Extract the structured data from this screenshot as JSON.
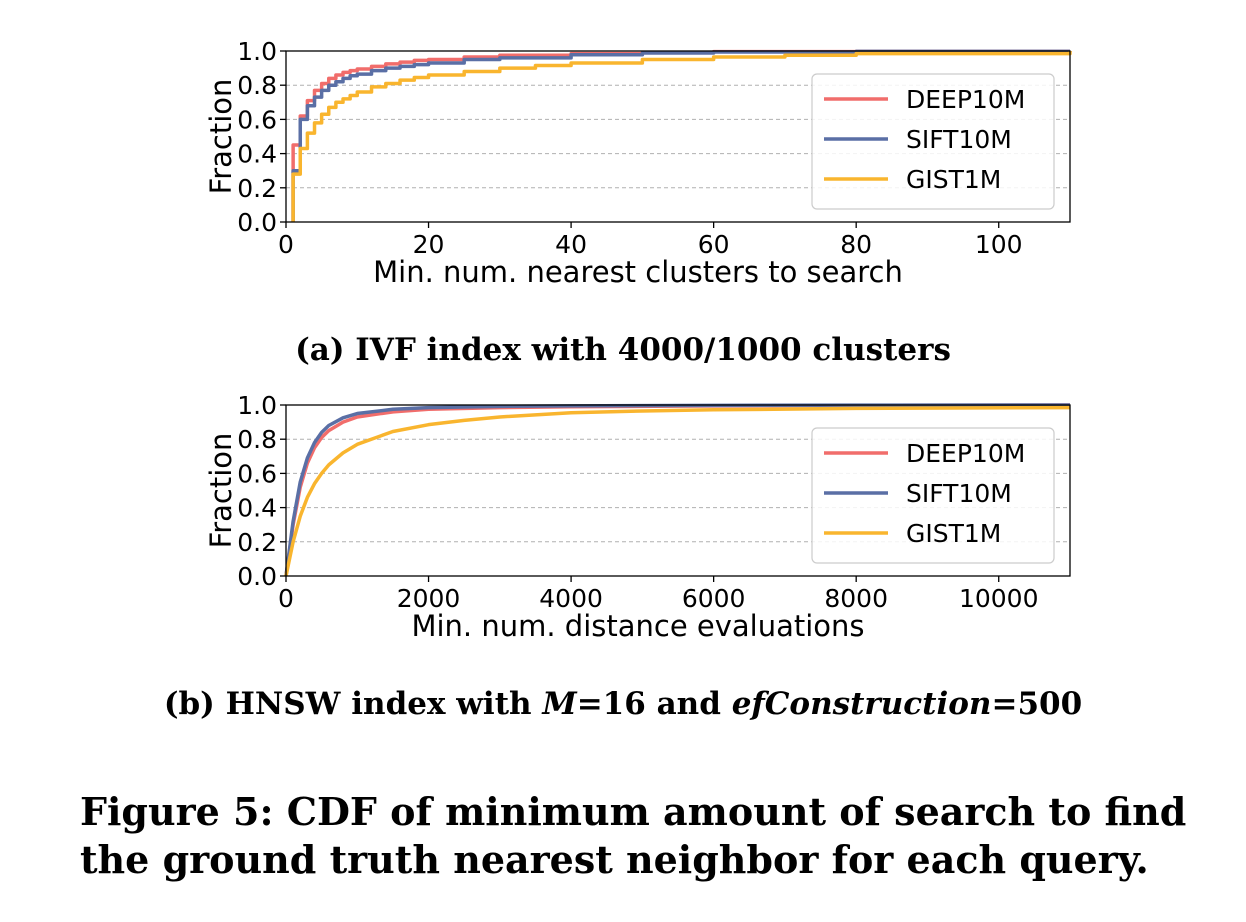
{
  "chart_data": [
    {
      "type": "line",
      "subcaption": "(a) IVF index with 4000/1000 clusters",
      "xlabel": "Min. num. nearest clusters to search",
      "ylabel": "Fraction",
      "xlim": [
        0,
        110
      ],
      "ylim": [
        0,
        1.0
      ],
      "xticks": [
        "0",
        "20",
        "40",
        "60",
        "80",
        "100"
      ],
      "yticks": [
        "0.0",
        "0.2",
        "0.4",
        "0.6",
        "0.8",
        "1.0"
      ],
      "grid": "horizontal dashed",
      "legend_position": "right",
      "step": true,
      "series": [
        {
          "name": "DEEP10M",
          "color": "#f16d6b",
          "x": [
            1,
            2,
            3,
            4,
            5,
            6,
            7,
            8,
            9,
            10,
            12,
            14,
            16,
            18,
            20,
            25,
            30,
            40,
            50,
            60,
            80,
            110
          ],
          "y": [
            0.45,
            0.62,
            0.71,
            0.77,
            0.81,
            0.84,
            0.86,
            0.875,
            0.885,
            0.895,
            0.91,
            0.925,
            0.935,
            0.945,
            0.95,
            0.965,
            0.975,
            0.985,
            0.992,
            0.996,
            0.998,
            1.0
          ]
        },
        {
          "name": "SIFT10M",
          "color": "#5a6fa5",
          "x": [
            1,
            2,
            3,
            4,
            5,
            6,
            7,
            8,
            9,
            10,
            12,
            14,
            16,
            18,
            20,
            25,
            30,
            40,
            50,
            60,
            80,
            110
          ],
          "y": [
            0.3,
            0.6,
            0.68,
            0.73,
            0.77,
            0.8,
            0.82,
            0.84,
            0.855,
            0.865,
            0.885,
            0.9,
            0.91,
            0.92,
            0.93,
            0.95,
            0.96,
            0.978,
            0.988,
            0.994,
            0.998,
            1.0
          ]
        },
        {
          "name": "GIST1M",
          "color": "#f9b52e",
          "x": [
            1,
            2,
            3,
            4,
            5,
            6,
            7,
            8,
            9,
            10,
            12,
            14,
            16,
            18,
            20,
            25,
            30,
            35,
            40,
            50,
            60,
            70,
            80,
            110
          ],
          "y": [
            0.28,
            0.43,
            0.52,
            0.58,
            0.63,
            0.67,
            0.7,
            0.72,
            0.74,
            0.76,
            0.79,
            0.81,
            0.83,
            0.845,
            0.86,
            0.88,
            0.9,
            0.915,
            0.93,
            0.95,
            0.965,
            0.975,
            0.985,
            1.0
          ]
        }
      ]
    },
    {
      "type": "line",
      "subcaption_parts": [
        "(b) HNSW index with ",
        "M",
        "=16 and ",
        "efConstruction",
        "=500"
      ],
      "xlabel": "Min. num. distance evaluations",
      "ylabel": "Fraction",
      "xlim": [
        0,
        11000
      ],
      "ylim": [
        0,
        1.0
      ],
      "xticks": [
        "0",
        "2000",
        "4000",
        "6000",
        "8000",
        "10000"
      ],
      "yticks": [
        "0.0",
        "0.2",
        "0.4",
        "0.6",
        "0.8",
        "1.0"
      ],
      "grid": "horizontal dashed",
      "legend_position": "right",
      "step": false,
      "series": [
        {
          "name": "DEEP10M",
          "color": "#f16d6b",
          "x": [
            0,
            50,
            100,
            200,
            300,
            400,
            500,
            600,
            800,
            1000,
            1500,
            2000,
            3000,
            4000,
            6000,
            8000,
            11000
          ],
          "y": [
            0.0,
            0.15,
            0.3,
            0.52,
            0.66,
            0.75,
            0.81,
            0.85,
            0.9,
            0.93,
            0.96,
            0.975,
            0.985,
            0.99,
            0.995,
            0.998,
            1.0
          ]
        },
        {
          "name": "SIFT10M",
          "color": "#5a6fa5",
          "x": [
            0,
            50,
            100,
            200,
            300,
            400,
            500,
            600,
            800,
            1000,
            1500,
            2000,
            3000,
            4000,
            6000,
            8000,
            11000
          ],
          "y": [
            0.0,
            0.16,
            0.32,
            0.55,
            0.69,
            0.78,
            0.84,
            0.88,
            0.925,
            0.95,
            0.975,
            0.985,
            0.992,
            0.995,
            0.998,
            0.999,
            1.0
          ]
        },
        {
          "name": "GIST1M",
          "color": "#f9b52e",
          "x": [
            0,
            50,
            100,
            200,
            300,
            400,
            500,
            600,
            800,
            1000,
            1500,
            2000,
            2500,
            3000,
            4000,
            5000,
            6000,
            8000,
            11000
          ],
          "y": [
            0.0,
            0.1,
            0.2,
            0.35,
            0.46,
            0.54,
            0.6,
            0.65,
            0.72,
            0.77,
            0.845,
            0.885,
            0.91,
            0.93,
            0.955,
            0.965,
            0.972,
            0.98,
            0.985
          ]
        }
      ]
    }
  ],
  "figure_caption": "Figure 5: CDF of minimum amount of search to find the ground truth nearest neighbor for each query."
}
